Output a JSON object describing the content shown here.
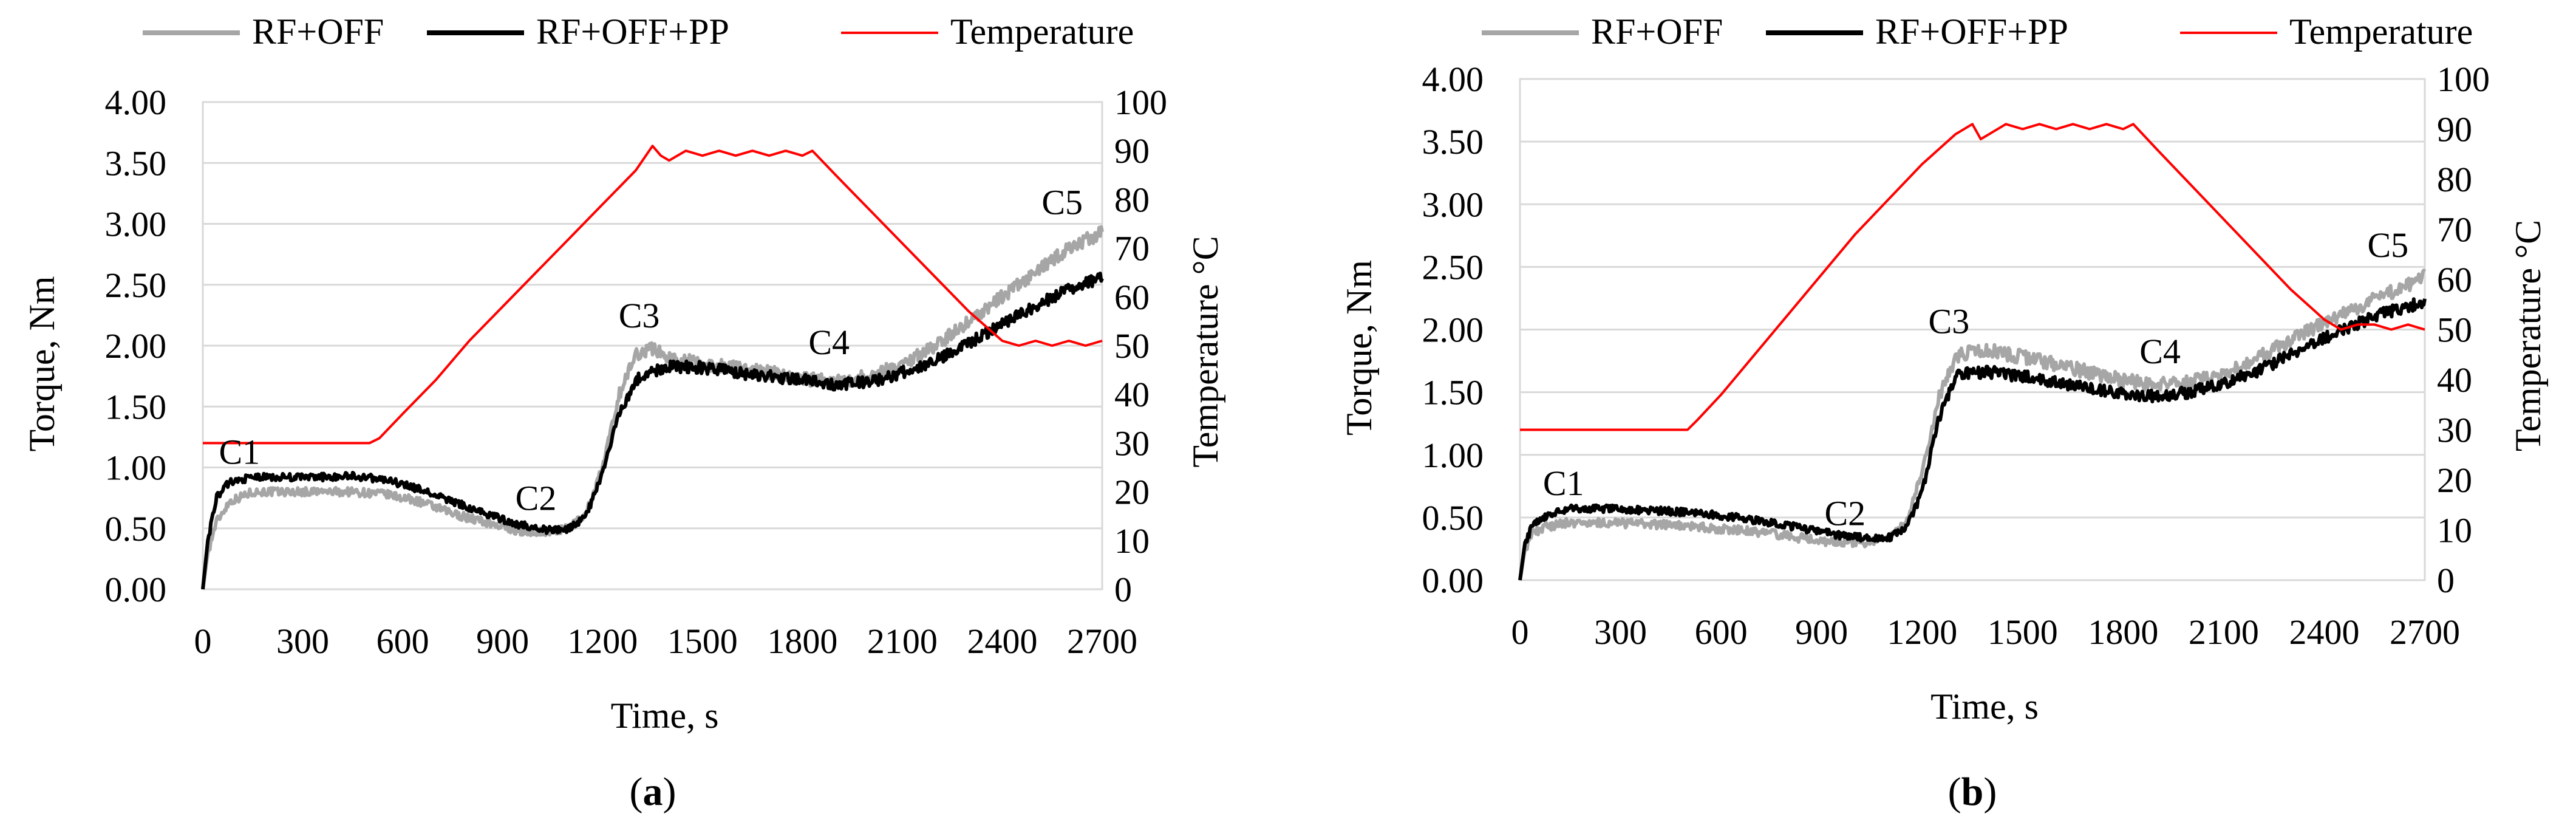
{
  "chart_data": [
    {
      "type": "line",
      "panel_label_open": "(",
      "panel_label_letter": "a",
      "panel_label_close": ")",
      "xlabel": "Time, s",
      "ylabel": "Torque, Nm",
      "y2label": "Temperature °C",
      "xlim": [
        0,
        2700
      ],
      "ylim": [
        0,
        4
      ],
      "y2lim": [
        0,
        100
      ],
      "x_ticks": [
        0,
        300,
        600,
        900,
        1200,
        1500,
        1800,
        2100,
        2400,
        2700
      ],
      "y_ticks": [
        "0.00",
        "0.50",
        "1.00",
        "1.50",
        "2.00",
        "2.50",
        "3.00",
        "3.50",
        "4.00"
      ],
      "y2_ticks": [
        "0",
        "10",
        "20",
        "30",
        "40",
        "50",
        "60",
        "70",
        "80",
        "90",
        "100"
      ],
      "series": [
        {
          "name": "RF+OFF",
          "axis": "left",
          "color": "#a6a6a6",
          "x": [
            0,
            15,
            40,
            80,
            150,
            250,
            350,
            450,
            550,
            650,
            750,
            850,
            950,
            1050,
            1100,
            1150,
            1200,
            1250,
            1300,
            1350,
            1400,
            1500,
            1600,
            1700,
            1800,
            1900,
            2000,
            2100,
            2200,
            2300,
            2400,
            2500,
            2600,
            2700
          ],
          "y": [
            0.0,
            0.3,
            0.55,
            0.72,
            0.8,
            0.8,
            0.8,
            0.8,
            0.78,
            0.72,
            0.62,
            0.55,
            0.48,
            0.47,
            0.5,
            0.62,
            1.0,
            1.6,
            1.93,
            1.98,
            1.9,
            1.85,
            1.82,
            1.78,
            1.73,
            1.7,
            1.75,
            1.85,
            2.0,
            2.2,
            2.4,
            2.6,
            2.8,
            2.93
          ]
        },
        {
          "name": "RF+OFF+PP",
          "axis": "left",
          "color": "#000000",
          "x": [
            0,
            15,
            40,
            80,
            150,
            250,
            350,
            450,
            550,
            650,
            750,
            850,
            950,
            1050,
            1100,
            1150,
            1200,
            1250,
            1300,
            1350,
            1400,
            1500,
            1600,
            1700,
            1800,
            1900,
            2000,
            2100,
            2200,
            2300,
            2400,
            2500,
            2600,
            2700
          ],
          "y": [
            0.0,
            0.4,
            0.75,
            0.88,
            0.92,
            0.92,
            0.92,
            0.93,
            0.9,
            0.82,
            0.72,
            0.62,
            0.53,
            0.48,
            0.5,
            0.6,
            0.95,
            1.45,
            1.72,
            1.78,
            1.83,
            1.82,
            1.78,
            1.75,
            1.72,
            1.68,
            1.7,
            1.78,
            1.88,
            2.02,
            2.18,
            2.33,
            2.46,
            2.56
          ]
        },
        {
          "name": "Temperature",
          "axis": "right",
          "color": "#ff0000",
          "x": [
            0,
            500,
            530,
            600,
            700,
            800,
            900,
            1000,
            1100,
            1200,
            1300,
            1350,
            1375,
            1400,
            1450,
            1500,
            1550,
            1600,
            1650,
            1700,
            1750,
            1800,
            1830,
            1900,
            2000,
            2100,
            2200,
            2300,
            2350,
            2400,
            2450,
            2500,
            2550,
            2600,
            2650,
            2700
          ],
          "y": [
            30,
            30,
            31,
            36,
            43,
            51,
            58,
            65,
            72,
            79,
            86,
            91,
            89,
            88,
            90,
            89,
            90,
            89,
            90,
            89,
            90,
            89,
            90,
            85,
            78,
            71,
            64,
            57,
            54,
            51,
            50,
            51,
            50,
            51,
            50,
            51
          ]
        }
      ],
      "annotations": [
        {
          "text": "C1",
          "x": 110,
          "y": 1.03
        },
        {
          "text": "C2",
          "x": 1000,
          "y": 0.65
        },
        {
          "text": "C3",
          "x": 1310,
          "y": 2.15
        },
        {
          "text": "C4",
          "x": 1880,
          "y": 1.93
        },
        {
          "text": "C5",
          "x": 2580,
          "y": 3.08
        }
      ]
    },
    {
      "type": "line",
      "panel_label_open": "(",
      "panel_label_letter": "b",
      "panel_label_close": ")",
      "xlabel": "Time, s",
      "ylabel": "Torque, Nm",
      "y2label": "Temperature °C",
      "xlim": [
        0,
        2700
      ],
      "ylim": [
        0,
        4
      ],
      "y2lim": [
        0,
        100
      ],
      "x_ticks": [
        0,
        300,
        600,
        900,
        1200,
        1500,
        1800,
        2100,
        2400,
        2700
      ],
      "y_ticks": [
        "0.00",
        "0.50",
        "1.00",
        "1.50",
        "2.00",
        "2.50",
        "3.00",
        "3.50",
        "4.00"
      ],
      "y2_ticks": [
        "0",
        "10",
        "20",
        "30",
        "40",
        "50",
        "60",
        "70",
        "80",
        "90",
        "100"
      ],
      "series": [
        {
          "name": "RF+OFF",
          "axis": "left",
          "color": "#a6a6a6",
          "x": [
            0,
            15,
            40,
            80,
            150,
            250,
            350,
            450,
            550,
            650,
            750,
            850,
            950,
            1050,
            1100,
            1150,
            1200,
            1250,
            1300,
            1350,
            1400,
            1500,
            1600,
            1700,
            1800,
            1900,
            2000,
            2100,
            2200,
            2300,
            2400,
            2500,
            2600,
            2700
          ],
          "y": [
            0.0,
            0.25,
            0.38,
            0.43,
            0.46,
            0.46,
            0.45,
            0.44,
            0.42,
            0.4,
            0.37,
            0.33,
            0.3,
            0.3,
            0.33,
            0.45,
            0.85,
            1.45,
            1.78,
            1.83,
            1.83,
            1.78,
            1.72,
            1.66,
            1.6,
            1.56,
            1.58,
            1.65,
            1.77,
            1.92,
            2.06,
            2.18,
            2.3,
            2.42
          ]
        },
        {
          "name": "RF+OFF+PP",
          "axis": "left",
          "color": "#000000",
          "x": [
            0,
            15,
            40,
            80,
            150,
            250,
            350,
            450,
            550,
            650,
            750,
            850,
            950,
            1050,
            1100,
            1150,
            1200,
            1250,
            1300,
            1350,
            1400,
            1500,
            1600,
            1700,
            1800,
            1900,
            2000,
            2100,
            2200,
            2300,
            2400,
            2500,
            2600,
            2700
          ],
          "y": [
            0.0,
            0.3,
            0.45,
            0.52,
            0.57,
            0.57,
            0.56,
            0.55,
            0.53,
            0.5,
            0.46,
            0.41,
            0.36,
            0.33,
            0.34,
            0.4,
            0.7,
            1.3,
            1.62,
            1.66,
            1.66,
            1.63,
            1.58,
            1.53,
            1.49,
            1.47,
            1.5,
            1.57,
            1.67,
            1.8,
            1.93,
            2.05,
            2.15,
            2.22
          ]
        },
        {
          "name": "Temperature",
          "axis": "right",
          "color": "#ff0000",
          "x": [
            0,
            500,
            530,
            600,
            700,
            800,
            900,
            1000,
            1100,
            1200,
            1300,
            1350,
            1375,
            1400,
            1450,
            1500,
            1550,
            1600,
            1650,
            1700,
            1750,
            1800,
            1830,
            1900,
            2000,
            2100,
            2200,
            2300,
            2350,
            2400,
            2450,
            2500,
            2550,
            2600,
            2650,
            2700
          ],
          "y": [
            30,
            30,
            32,
            37,
            45,
            53,
            61,
            69,
            76,
            83,
            89,
            91,
            88,
            89,
            91,
            90,
            91,
            90,
            91,
            90,
            91,
            90,
            91,
            86,
            79,
            72,
            65,
            58,
            55,
            52,
            50,
            51,
            51,
            50,
            51,
            50
          ]
        }
      ],
      "annotations": [
        {
          "text": "C1",
          "x": 130,
          "y": 0.68
        },
        {
          "text": "C2",
          "x": 970,
          "y": 0.44
        },
        {
          "text": "C3",
          "x": 1280,
          "y": 1.97
        },
        {
          "text": "C4",
          "x": 1910,
          "y": 1.73
        },
        {
          "text": "C5",
          "x": 2590,
          "y": 2.58
        }
      ]
    }
  ]
}
